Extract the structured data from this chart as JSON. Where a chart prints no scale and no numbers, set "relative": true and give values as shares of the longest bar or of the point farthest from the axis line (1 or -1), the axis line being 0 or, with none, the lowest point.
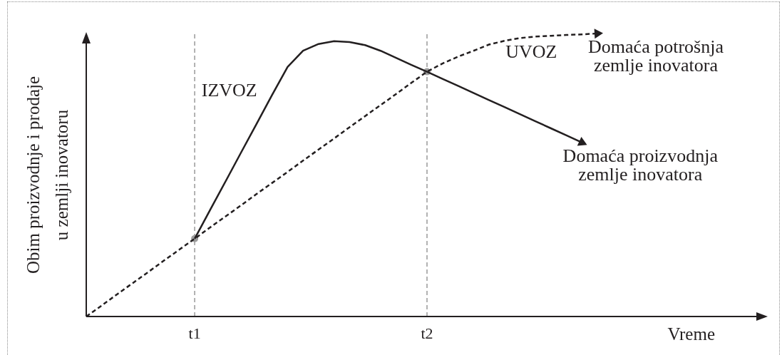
{
  "chart_data": {
    "type": "line",
    "xlabel": "Vreme",
    "ylabel": "Obim proizvodnje i prodaje u zemlji inovatoru",
    "relative": true,
    "marker": "none",
    "legend": "top right",
    "categories": [
      null,
      null,
      null,
      null,
      null,
      null,
      null,
      "t1",
      null,
      null,
      null,
      null,
      null,
      null,
      null,
      null,
      null,
      null,
      null,
      null,
      null,
      null,
      "t2",
      null,
      null,
      null,
      null,
      null,
      null,
      null,
      null,
      null,
      null,
      null,
      null,
      null,
      null,
      null,
      null,
      null,
      null,
      null,
      null,
      null,
      null
    ],
    "series": [
      {
        "name": "Domaća proizvodnja zemlje inovatora",
        "color": "#231f20",
        "line_style": "solid",
        "values": [
          null,
          null,
          null,
          null,
          null,
          null,
          null,
          0.275,
          0.377,
          0.478,
          0.58,
          0.681,
          0.783,
          0.882,
          0.939,
          0.963,
          0.973,
          0.97,
          0.959,
          0.939,
          0.914,
          0.889,
          0.865,
          0.84,
          0.815,
          0.79,
          0.765,
          0.74,
          0.715,
          0.69,
          0.665,
          0.64,
          0.615,
          null,
          null,
          null,
          null,
          null,
          null,
          null,
          null,
          null,
          null,
          null,
          null
        ]
      },
      {
        "name": "Domaća potrošnja zemlje inovatora",
        "color": "#231f20",
        "line_style": "dashed",
        "values": [
          0,
          0.039,
          0.079,
          0.118,
          0.157,
          0.197,
          0.236,
          0.275,
          0.315,
          0.354,
          0.393,
          0.433,
          0.472,
          0.511,
          0.551,
          0.59,
          0.629,
          0.669,
          0.708,
          0.747,
          0.786,
          0.826,
          0.865,
          0.894,
          0.918,
          0.939,
          0.961,
          0.974,
          0.984,
          0.989,
          0.992,
          0.995,
          0.997,
          1,
          null,
          null,
          null,
          null,
          null,
          null,
          null,
          null,
          null,
          null,
          null
        ]
      },
      {
        "type": "scatter",
        "color": "#9d9d9d",
        "marker": "circle",
        "values": [
          null,
          null,
          null,
          null,
          null,
          null,
          null,
          0.275,
          null,
          null,
          null,
          null,
          null,
          null,
          null,
          null,
          null,
          null,
          null,
          null,
          null,
          null,
          0.865,
          null,
          null,
          null,
          null,
          null,
          null,
          null,
          null,
          null,
          null,
          null,
          null,
          null,
          null,
          null,
          null,
          null,
          null,
          null,
          null,
          null,
          null
        ]
      }
    ],
    "ref_lines": [
      {
        "axis": "x",
        "value": "t1",
        "color": "#999999",
        "line_style": "dashed"
      },
      {
        "axis": "x",
        "value": "t2",
        "color": "#999999",
        "line_style": "dashed"
      }
    ],
    "annotations": [
      "IZVOZ",
      "UVOZ"
    ]
  }
}
